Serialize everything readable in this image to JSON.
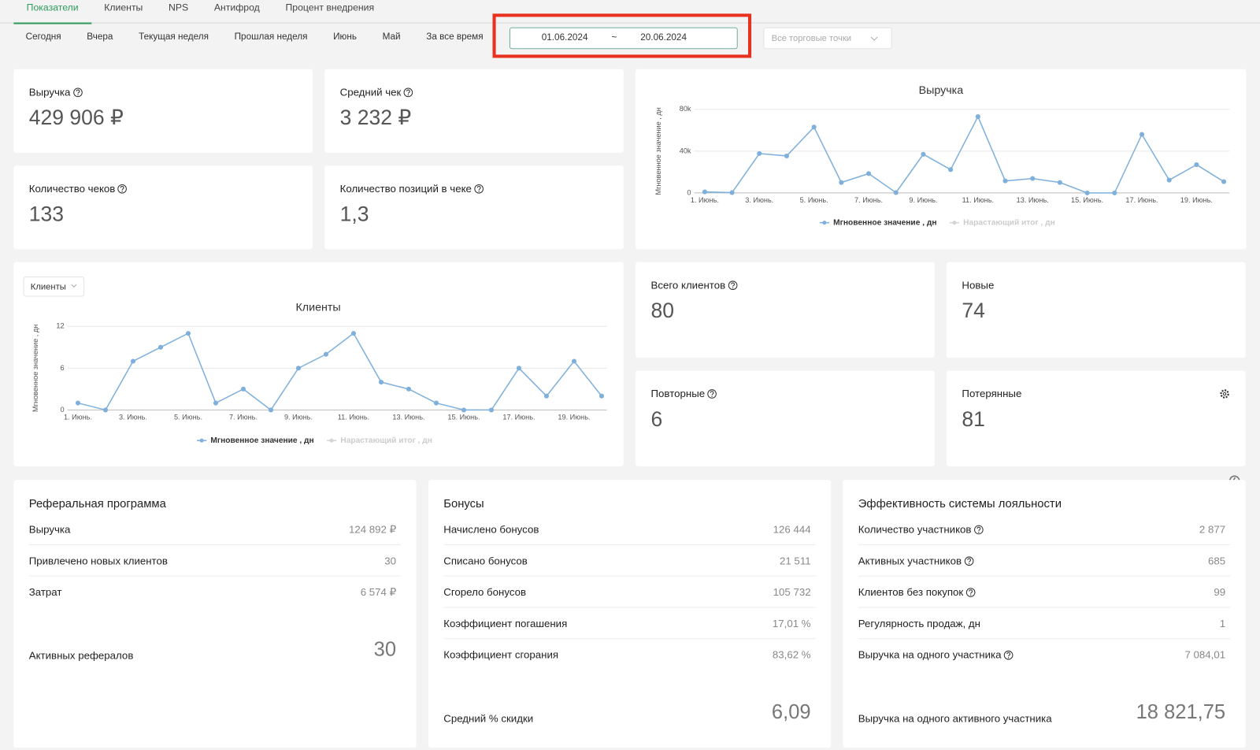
{
  "tabs": [
    "Показатели",
    "Клиенты",
    "NPS",
    "Антифрод",
    "Процент внедрения"
  ],
  "active_tab": 0,
  "periods": [
    "Сегодня",
    "Вчера",
    "Текущая неделя",
    "Прошлая неделя",
    "Июнь",
    "Май",
    "За все время"
  ],
  "date_range": {
    "from": "01.06.2024",
    "separator": "~",
    "to": "20.06.2024"
  },
  "outlets": "Все торговые точки",
  "kpis": [
    {
      "label": "Выручка",
      "value": "429 906 ₽",
      "help": true
    },
    {
      "label": "Средний чек",
      "value": "3 232 ₽",
      "help": true
    },
    {
      "label": "Количество чеков",
      "value": "133",
      "help": true
    },
    {
      "label": "Количество позиций в чеке",
      "value": "1,3",
      "help": true
    }
  ],
  "client_kpis": [
    {
      "label": "Всего клиентов",
      "value": "80",
      "help": true
    },
    {
      "label": "Новые",
      "value": "74",
      "help": false
    },
    {
      "label": "Повторные",
      "value": "6",
      "help": true
    },
    {
      "label": "Потерянные",
      "value": "81",
      "help": false,
      "settings": true
    }
  ],
  "clients_selector": "Клиенты",
  "chart_data": [
    {
      "type": "line",
      "title": "Выручка",
      "y_label": "Мгновенное значение , дн",
      "categories": [
        "1. Июнь.",
        null,
        "3. Июнь.",
        null,
        "5. Июнь.",
        null,
        "7. Июнь.",
        null,
        "9. Июнь.",
        null,
        "11. Июнь.",
        null,
        "13. Июнь.",
        null,
        "15. Июнь.",
        null,
        "17. Июнь.",
        null,
        "19. Июнь.",
        null
      ],
      "series": [
        {
          "name": "Мгновенное значение , дн",
          "color": "#7fb0dc",
          "values": [
            1000,
            300,
            37700,
            35400,
            63000,
            10000,
            18500,
            300,
            37000,
            22300,
            73000,
            11500,
            13800,
            10000,
            0,
            0,
            56000,
            12300,
            27000,
            10800
          ]
        },
        {
          "name": "Нарастающий итог , дн",
          "color": "#d5d5d5",
          "hidden": true
        }
      ],
      "ylim": [
        0,
        80000
      ],
      "yticks": [
        0,
        {
          "value": 40000,
          "label": "40k"
        },
        {
          "value": 80000,
          "label": "80k"
        }
      ],
      "grid": true
    },
    {
      "type": "line",
      "title": "Клиенты",
      "y_label": "Мгновенное значение , дн",
      "categories": [
        "1. Июнь.",
        null,
        "3. Июнь.",
        null,
        "5. Июнь.",
        null,
        "7. Июнь.",
        null,
        "9. Июнь.",
        null,
        "11. Июнь.",
        null,
        "13. Июнь.",
        null,
        "15. Июнь.",
        null,
        "17. Июнь.",
        null,
        "19. Июнь.",
        null
      ],
      "series": [
        {
          "name": "Мгновенное значение , дн",
          "color": "#7fb0dc",
          "values": [
            1,
            0,
            7,
            9,
            11,
            1,
            3,
            0,
            6,
            8,
            11,
            4,
            3,
            1,
            0,
            0,
            6,
            2,
            7,
            2
          ]
        },
        {
          "name": "Нарастающий итог , дн",
          "color": "#d5d5d5",
          "hidden": true
        }
      ],
      "ylim": [
        0,
        12
      ],
      "yticks": [
        0,
        6,
        12
      ],
      "grid": true
    }
  ],
  "sections": [
    {
      "title": "Реферальная программа",
      "rows": [
        {
          "label": "Выручка",
          "value": "124 892 ₽"
        },
        {
          "label": "Привлечено новых клиентов",
          "value": "30"
        },
        {
          "label": "Затрат",
          "value": "6 574 ₽"
        }
      ],
      "big": {
        "label": "Активных рефералов",
        "value": "30"
      }
    },
    {
      "title": "Бонусы",
      "rows": [
        {
          "label": "Начислено бонусов",
          "value": "126 444"
        },
        {
          "label": "Списано бонусов",
          "value": "21 511"
        },
        {
          "label": "Сгорело бонусов",
          "value": "105 732"
        },
        {
          "label": "Коэффициент погашения",
          "value": "17,01 %"
        },
        {
          "label": "Коэффициент сгорания",
          "value": "83,62 %"
        }
      ],
      "big": {
        "label": "Средний % скидки",
        "value": "6,09"
      }
    },
    {
      "title": "Эффективность системы лояльности",
      "rows": [
        {
          "label": "Количество участников",
          "value": "2 877",
          "help": true
        },
        {
          "label": "Активных участников",
          "value": "685",
          "help": true
        },
        {
          "label": "Клиентов без покупок",
          "value": "99",
          "help": true
        },
        {
          "label": "Регулярность продаж, дн",
          "value": "1"
        },
        {
          "label": "Выручка на одного участника",
          "value": "7 084,01",
          "help": true
        }
      ],
      "big": {
        "label": "Выручка на одного активного участника",
        "value": "18 821,75"
      }
    }
  ]
}
